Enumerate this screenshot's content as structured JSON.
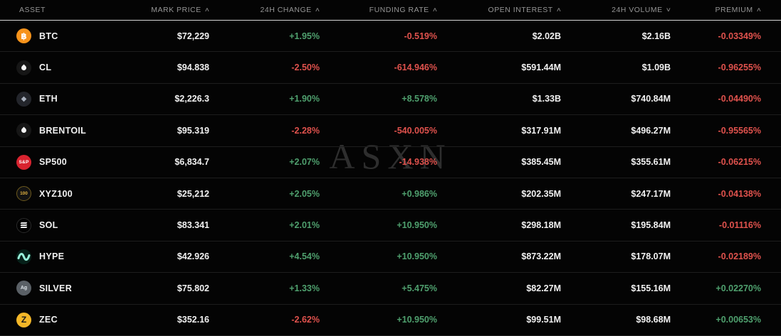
{
  "watermark": "ASXN",
  "colors": {
    "green": "#4fa06e",
    "red": "#e0524d",
    "btc_orange": "#f7931a",
    "zec_yellow": "#f4b728",
    "sp_red": "#d8232f",
    "hype_teal": "#97f0d9"
  },
  "headers": [
    {
      "label": "ASSET",
      "sort": null
    },
    {
      "label": "MARK PRICE",
      "sort": "up"
    },
    {
      "label": "24H CHANGE",
      "sort": "up"
    },
    {
      "label": "FUNDING RATE",
      "sort": "up"
    },
    {
      "label": "OPEN INTEREST",
      "sort": "up"
    },
    {
      "label": "24H VOLUME",
      "sort": "down"
    },
    {
      "label": "PREMIUM",
      "sort": "up"
    }
  ],
  "rows": [
    {
      "symbol": "BTC",
      "icon": "btc-icon",
      "mark": "$72,229",
      "change": "+1.95%",
      "funding": "-0.519%",
      "oi": "$2.02B",
      "volume": "$2.16B",
      "premium": "-0.03349%"
    },
    {
      "symbol": "CL",
      "icon": "oil-drop-icon",
      "mark": "$94.838",
      "change": "-2.50%",
      "funding": "-614.946%",
      "oi": "$591.44M",
      "volume": "$1.09B",
      "premium": "-0.96255%"
    },
    {
      "symbol": "ETH",
      "icon": "eth-icon",
      "mark": "$2,226.3",
      "change": "+1.90%",
      "funding": "+8.578%",
      "oi": "$1.33B",
      "volume": "$740.84M",
      "premium": "-0.04490%"
    },
    {
      "symbol": "BRENTOIL",
      "icon": "oil-drop-icon",
      "mark": "$95.319",
      "change": "-2.28%",
      "funding": "-540.005%",
      "oi": "$317.91M",
      "volume": "$496.27M",
      "premium": "-0.95565%"
    },
    {
      "symbol": "SP500",
      "icon": "sp500-icon",
      "mark": "$6,834.7",
      "change": "+2.07%",
      "funding": "-14.938%",
      "oi": "$385.45M",
      "volume": "$355.61M",
      "premium": "-0.06215%"
    },
    {
      "symbol": "XYZ100",
      "icon": "xyz100-icon",
      "mark": "$25,212",
      "change": "+2.05%",
      "funding": "+0.986%",
      "oi": "$202.35M",
      "volume": "$247.17M",
      "premium": "-0.04138%"
    },
    {
      "symbol": "SOL",
      "icon": "sol-icon",
      "mark": "$83.341",
      "change": "+2.01%",
      "funding": "+10.950%",
      "oi": "$298.18M",
      "volume": "$195.84M",
      "premium": "-0.01116%"
    },
    {
      "symbol": "HYPE",
      "icon": "hype-icon",
      "mark": "$42.926",
      "change": "+4.54%",
      "funding": "+10.950%",
      "oi": "$873.22M",
      "volume": "$178.07M",
      "premium": "-0.02189%"
    },
    {
      "symbol": "SILVER",
      "icon": "silver-icon",
      "mark": "$75.802",
      "change": "+1.33%",
      "funding": "+5.475%",
      "oi": "$82.27M",
      "volume": "$155.16M",
      "premium": "+0.02270%"
    },
    {
      "symbol": "ZEC",
      "icon": "zec-icon",
      "mark": "$352.16",
      "change": "-2.62%",
      "funding": "+10.950%",
      "oi": "$99.51M",
      "volume": "$98.68M",
      "premium": "+0.00653%"
    }
  ]
}
